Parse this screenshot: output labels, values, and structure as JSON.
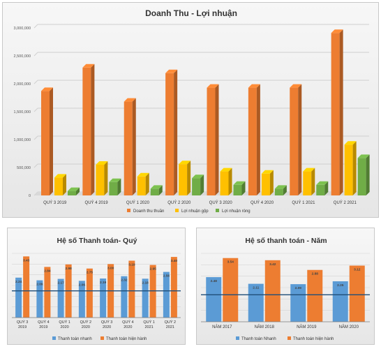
{
  "charts": {
    "chart_data": [
      {
        "type": "bar",
        "title": "Doanh Thu - Lợi nhuận",
        "categories": [
          "QUÝ 3 2019",
          "QUÝ 4 2019",
          "QUÝ 1 2020",
          "QUÝ 2 2020",
          "QUÝ 3 2020",
          "QUÝ 4 2020",
          "QUÝ 1 2021",
          "QUÝ 2 2021"
        ],
        "series": [
          {
            "name": "Doanh thu thuần",
            "color": "#ed7d31",
            "values": [
              1870000,
              2290000,
              1680000,
              2190000,
              1930000,
              1930000,
              1930000,
              2910000
            ]
          },
          {
            "name": "Lợi nhuận gộp",
            "color": "#ffc000",
            "values": [
              320000,
              550000,
              340000,
              560000,
              430000,
              390000,
              430000,
              910000
            ]
          },
          {
            "name": "Lợi nhuận ròng",
            "color": "#70ad47",
            "values": [
              80000,
              240000,
              120000,
              310000,
              190000,
              120000,
              190000,
              670000
            ]
          }
        ],
        "ylim": [
          0,
          3000000
        ],
        "yticks": [
          "0",
          "500,000",
          "1,000,000",
          "1,500,000",
          "2,000,000",
          "2,500,000",
          "3,000,000"
        ],
        "legend": "bottom",
        "grid": true
      },
      {
        "type": "bar",
        "title": "Hệ số Thanh toán- Quý",
        "categories": [
          [
            "QUÝ 3",
            "2019"
          ],
          [
            "QUÝ 4",
            "2019"
          ],
          [
            "QUÝ 1",
            "2020"
          ],
          [
            "QUÝ 2",
            "2020"
          ],
          [
            "QUÝ 3",
            "2020"
          ],
          [
            "QUÝ 4",
            "2020"
          ],
          [
            "QUÝ 1",
            "2021"
          ],
          [
            "QUÝ 2",
            "2021"
          ]
        ],
        "series": [
          {
            "name": "Thanh toán nhanh",
            "color": "#5b9bd5",
            "values": [
              2.24,
              2.09,
              2.17,
              2.06,
              2.19,
              2.32,
              2.18,
              2.56
            ],
            "labels": [
              "2.24",
              "2.09",
              "2.17",
              "2.06",
              "2.19",
              "2.32",
              "2.18",
              "2.56"
            ]
          },
          {
            "name": "Thanh toán hiện hành",
            "color": "#ed7d31",
            "values": [
              3.43,
              2.84,
              2.98,
              2.75,
              3.0,
              3.19,
              2.95,
              3.4
            ],
            "labels": [
              "3.43",
              "2.84",
              "2.98",
              "2.75",
              "3.00",
              "3.19",
              "2.95",
              "3.40"
            ]
          }
        ],
        "ylim": [
          0,
          3.6
        ],
        "reference_line": 1.5,
        "legend": "bottom"
      },
      {
        "type": "bar",
        "title": "Hệ số thanh toán - Năm",
        "categories": [
          "NĂM 2017",
          "NĂM 2018",
          "NĂM 2019",
          "NĂM 2020"
        ],
        "series": [
          {
            "name": "Thanh toán Nhanh",
            "color": "#5b9bd5",
            "values": [
              2.48,
              2.11,
              2.09,
              2.25
            ],
            "labels": [
              "2.48",
              "2.11",
              "2.09",
              "2.25"
            ]
          },
          {
            "name": "Thanh toán hiện hành",
            "color": "#ed7d31",
            "values": [
              3.54,
              3.42,
              2.88,
              3.12
            ],
            "labels": [
              "3.54",
              "3.42",
              "2.88",
              "3.12"
            ]
          }
        ],
        "ylim": [
          0,
          3.8
        ],
        "reference_line": 1.5,
        "legend": "bottom"
      }
    ]
  }
}
